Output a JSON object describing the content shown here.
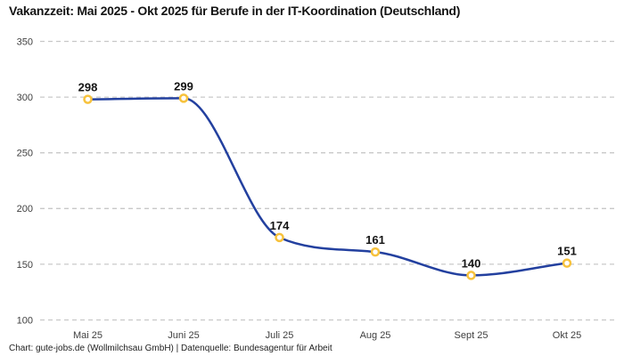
{
  "header": {
    "title": "Vakanzzeit: Mai 2025 - Okt 2025 für Berufe in der IT-Koordination (Deutschland)"
  },
  "footer": {
    "credit": "Chart: gute-jobs.de (Wollmilchsau GmbH) | Datenquelle: Bundesagentur für Arbeit"
  },
  "chart_data": {
    "type": "line",
    "title": "Vakanzzeit: Mai 2025 - Okt 2025 für Berufe in der IT-Koordination (Deutschland)",
    "categories": [
      "Mai 25",
      "Juni 25",
      "Juli 25",
      "Aug 25",
      "Sept 25",
      "Okt 25"
    ],
    "values": [
      298,
      299,
      174,
      161,
      140,
      151
    ],
    "data_labels": [
      "298",
      "299",
      "174",
      "161",
      "140",
      "151"
    ],
    "xlabel": "",
    "ylabel": "",
    "ylim": [
      100,
      350
    ],
    "yticks": [
      100,
      150,
      200,
      250,
      300,
      350
    ],
    "grid": "horizontal-dashed",
    "legend": "none",
    "curve": "monotone",
    "colors": {
      "line": "#23409f",
      "marker_stroke": "#f7c23c",
      "marker_fill": "#ffffff",
      "gridline": "#c8c8c8",
      "tick_label": "#404040",
      "data_label": "#141414",
      "title": "#141414",
      "credit": "#1e1e1e"
    }
  }
}
